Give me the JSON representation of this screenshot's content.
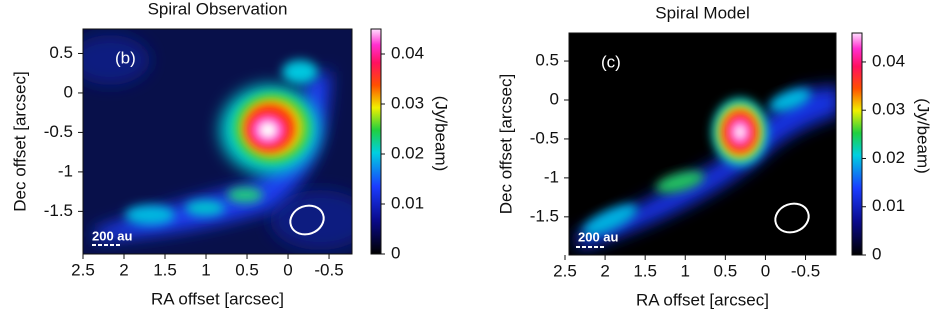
{
  "chart_data": [
    {
      "type": "image",
      "title": "Spiral Observation",
      "panel_label": "(b)",
      "scale_bar": "200 au",
      "xlabel": "RA offset [arcsec]",
      "ylabel": "Dec offset [arcsec]",
      "xlim": [
        2.5,
        -0.78
      ],
      "xticks": [
        2.5,
        2,
        1.5,
        1,
        0.5,
        0,
        -0.5
      ],
      "ylim": [
        -2.04,
        0.81
      ],
      "yticks": [
        0.5,
        0,
        -0.5,
        -1,
        -1.5
      ],
      "colorbar": {
        "label": "(Jy/beam)",
        "lim": [
          0,
          0.045
        ],
        "ticks": [
          0,
          0.01,
          0.02,
          0.03,
          0.04
        ]
      }
    },
    {
      "type": "image",
      "title": "Spiral Model",
      "panel_label": "(c)",
      "scale_bar": "200 au",
      "xlabel": "RA offset [arcsec]",
      "ylabel": "Dec offset [arcsec]",
      "xlim": [
        2.45,
        -0.88
      ],
      "xticks": [
        2.5,
        2,
        1.5,
        1,
        0.5,
        0,
        -0.5
      ],
      "ylim": [
        -1.99,
        0.86
      ],
      "yticks": [
        0.5,
        0,
        -0.5,
        -1,
        -1.5
      ],
      "colorbar": {
        "label": "(Jy/beam)",
        "lim": [
          0,
          0.046
        ],
        "ticks": [
          0,
          0.01,
          0.02,
          0.03,
          0.04
        ]
      }
    }
  ]
}
